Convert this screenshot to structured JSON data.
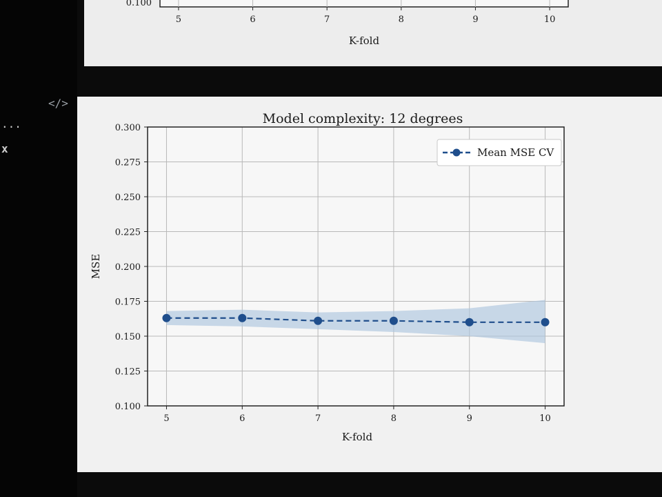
{
  "sidebar": {
    "fragments": [
      "...",
      "x"
    ],
    "code_icon": "</>"
  },
  "chart_data": [
    {
      "type": "line",
      "title": "",
      "xlabel": "K-fold",
      "x": [
        5,
        6,
        7,
        8,
        9,
        10
      ],
      "xlim": [
        4.75,
        10.25
      ],
      "partial": true,
      "visible_y_tick": "0.100"
    },
    {
      "type": "line",
      "title": "Model complexity: 12 degrees",
      "xlabel": "K-fold",
      "ylabel": "MSE",
      "x": [
        5,
        6,
        7,
        8,
        9,
        10
      ],
      "xlim": [
        4.75,
        10.25
      ],
      "ylim": [
        0.1,
        0.3
      ],
      "yticks": [
        "0.100",
        "0.125",
        "0.150",
        "0.175",
        "0.200",
        "0.225",
        "0.250",
        "0.275",
        "0.300"
      ],
      "grid": true,
      "legend_position": "top-right",
      "series": [
        {
          "name": "Mean MSE CV",
          "values": [
            0.163,
            0.163,
            0.161,
            0.161,
            0.16,
            0.16
          ],
          "band_lower": [
            0.158,
            0.157,
            0.155,
            0.153,
            0.15,
            0.145
          ],
          "band_upper": [
            0.168,
            0.169,
            0.167,
            0.168,
            0.17,
            0.176
          ],
          "color": "#1f4e8c",
          "band_color": "#aec6de",
          "line_style": "dashed",
          "marker": "circle"
        }
      ]
    }
  ]
}
